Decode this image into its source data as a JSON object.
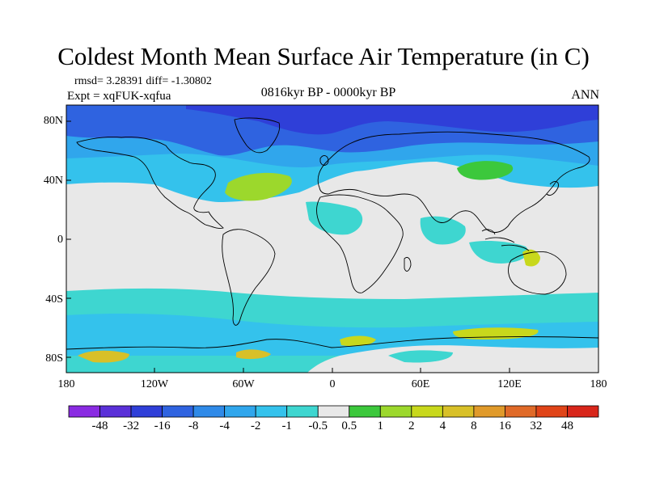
{
  "title": "Coldest Month Mean Surface Air Temperature (in C)",
  "stats": "rmsd= 3.28391 diff= -1.30802",
  "expt": "Expt = xqFUK-xqfua",
  "period": "0816kyr BP - 0000kyr BP",
  "season": "ANN",
  "lat_labels": [
    "80N",
    "40N",
    "0",
    "40S",
    "80S"
  ],
  "lon_labels": [
    "180",
    "120W",
    "60W",
    "0",
    "60E",
    "120E",
    "180"
  ],
  "colorbar": {
    "labels": [
      "-48",
      "-32",
      "-16",
      "-8",
      "-4",
      "-2",
      "-1",
      "-0.5",
      "0.5",
      "1",
      "2",
      "4",
      "8",
      "16",
      "32",
      "48"
    ],
    "colors": [
      "#8a2be2",
      "#5a30d8",
      "#2f3fd8",
      "#2f63e0",
      "#2f8ae8",
      "#30a6ec",
      "#34c2ec",
      "#3ed6d0",
      "#e8e8e8",
      "#3cc83c",
      "#9cd82c",
      "#c8d81c",
      "#d8c028",
      "#e09a2a",
      "#e06a28",
      "#e04418",
      "#d8261a"
    ]
  },
  "map_colors": {
    "neutral": "#e8e8e8",
    "ocean_cool": "#3ed6d0",
    "mid_cool": "#34c2ec",
    "cool": "#30a6ec",
    "strong_cool": "#2f63e0",
    "cold": "#2f3fd8",
    "warm_green": "#3cc83c",
    "warm_yellow": "#c8d81c",
    "warm_orange": "#d8c028",
    "coast": "#000000"
  }
}
